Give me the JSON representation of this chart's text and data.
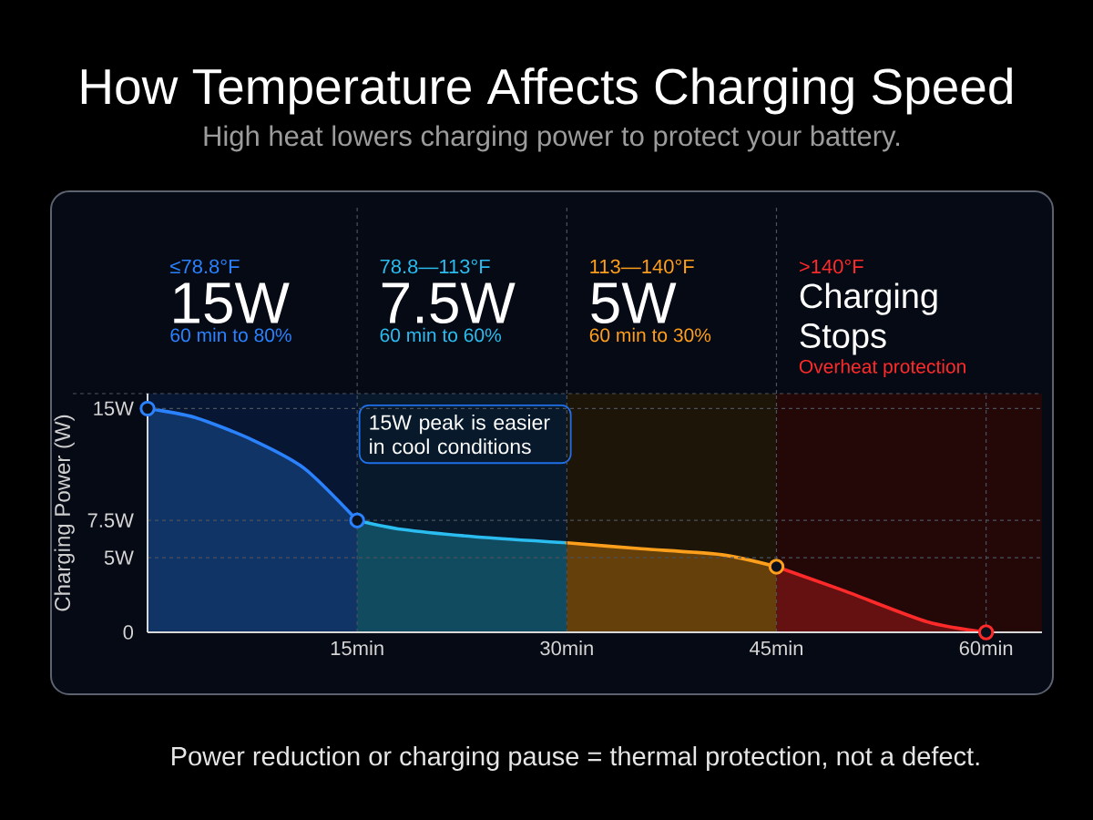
{
  "chart_data": {
    "type": "area",
    "title": "How Temperature Affects Charging Speed",
    "subtitle": "High heat lowers charging power to protect your battery.",
    "ylabel": "Charging Power (W)",
    "xlim": [
      0,
      64
    ],
    "ylim": [
      0,
      16
    ],
    "xticks": [
      {
        "value": 15,
        "label": "15min"
      },
      {
        "value": 30,
        "label": "30min"
      },
      {
        "value": 45,
        "label": "45min"
      },
      {
        "value": 60,
        "label": "60min"
      }
    ],
    "yticks": [
      0,
      {
        "value": 5,
        "label": "5W"
      },
      {
        "value": 7.5,
        "label": "7.5W"
      },
      {
        "value": 15,
        "label": "15W"
      }
    ],
    "grid": true,
    "series": [
      {
        "color": "#2a82ff",
        "x": [
          0,
          3.4,
          7.5,
          11.2,
          15
        ],
        "values": [
          15,
          14.4,
          12.9,
          11.0,
          7.5
        ]
      },
      {
        "color": "#2bbcf0",
        "x": [
          15,
          18.2,
          23.5,
          30
        ],
        "values": [
          7.5,
          6.9,
          6.4,
          6.0
        ]
      },
      {
        "color": "#ff9f1c",
        "x": [
          30,
          35.3,
          41.1,
          45
        ],
        "values": [
          6.0,
          5.6,
          5.2,
          4.4
        ]
      },
      {
        "color": "#ff2a2a",
        "x": [
          45,
          49.8,
          55.8,
          60
        ],
        "values": [
          4.4,
          2.8,
          0.7,
          0
        ]
      },
      {
        "type": "scatter",
        "marker": "circle",
        "x": [
          0,
          15,
          45,
          60
        ],
        "values": [
          15,
          7.5,
          4.4,
          0
        ],
        "colors": [
          "#2a82ff",
          "#2a82ff",
          "#ff9f1c",
          "#ff2a2a"
        ]
      }
    ],
    "bands": [
      {
        "axis": "x",
        "from": 0,
        "to": 15,
        "color": "#071632"
      },
      {
        "axis": "x",
        "from": 15,
        "to": 30,
        "color": "#07192a"
      },
      {
        "axis": "x",
        "from": 30,
        "to": 45,
        "color": "#1c1508"
      },
      {
        "axis": "x",
        "from": 45,
        "to": 64,
        "color": "#240808"
      }
    ],
    "annotations": [
      "≤78.8°F",
      "15W",
      "60 min to 80%",
      "78.8—113°F",
      "7.5W",
      "60 min to 60%",
      "113—140°F",
      "5W",
      "60 min to 30%",
      ">140°F",
      "Charging Stops",
      "Overheat protection",
      "15W peak is easier in cool conditions",
      "Power reduction or charging pause = thermal protection, not a defect."
    ]
  }
}
